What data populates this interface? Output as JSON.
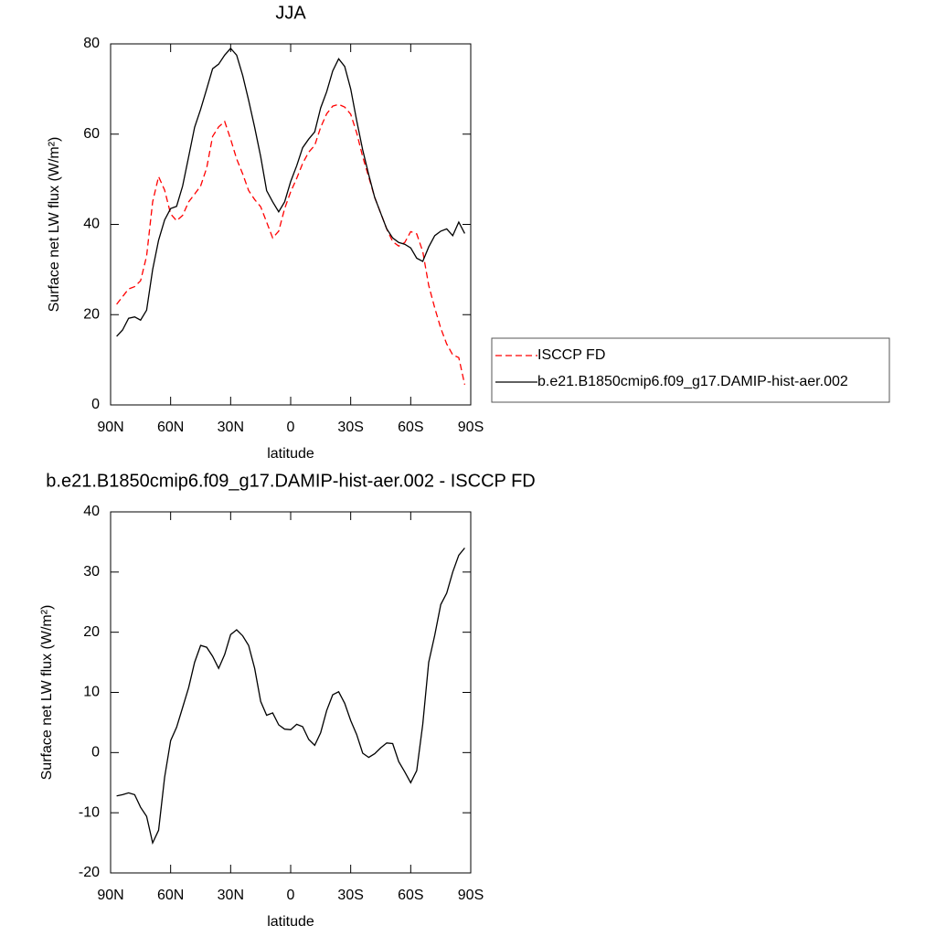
{
  "chart_data": [
    {
      "type": "line",
      "title": "JJA",
      "xlabel": "latitude",
      "ylabel": "Surface net LW flux (W/m²)",
      "legend": "right",
      "x": [
        87,
        84,
        81,
        78,
        75,
        72,
        69,
        66,
        63,
        60,
        57,
        54,
        51,
        48,
        45,
        42,
        39,
        36,
        33,
        30,
        27,
        24,
        21,
        18,
        15,
        12,
        9,
        6,
        3,
        0,
        -3,
        -6,
        -9,
        -12,
        -15,
        -18,
        -21,
        -24,
        -27,
        -30,
        -33,
        -36,
        -39,
        -42,
        -45,
        -48,
        -51,
        -54,
        -57,
        -60,
        -63,
        -66,
        -69,
        -72,
        -75,
        -78,
        -81,
        -84,
        -87
      ],
      "xlim": [
        90,
        -90
      ],
      "xticks": [
        {
          "value": 90,
          "label": "90N"
        },
        {
          "value": 60,
          "label": "60N"
        },
        {
          "value": 30,
          "label": "30N"
        },
        0,
        {
          "value": -30,
          "label": "30S"
        },
        {
          "value": -60,
          "label": "60S"
        },
        {
          "value": -90,
          "label": "90S"
        }
      ],
      "ylim": [
        0,
        80
      ],
      "yticks": [
        0,
        20,
        40,
        60,
        80
      ],
      "series": [
        {
          "name": "ISCCP FD",
          "color": "#ff0000",
          "dashed": true,
          "values": [
            22.3,
            24,
            25.7,
            26.2,
            27.5,
            33,
            45,
            50.6,
            47.6,
            42.3,
            40.8,
            42,
            45,
            46.7,
            48.5,
            52.5,
            59.5,
            61.6,
            62.8,
            58.9,
            54.5,
            51.2,
            47.5,
            45.5,
            43.9,
            40.5,
            37,
            38.5,
            43.5,
            47.2,
            50.2,
            53.5,
            56,
            57.5,
            61.5,
            64.5,
            66.2,
            66.6,
            66,
            64.4,
            60.3,
            55,
            50.5,
            46,
            42.5,
            39,
            36.2,
            35.2,
            36,
            38.4,
            37.9,
            34,
            26.5,
            21.5,
            17,
            13.5,
            11.1,
            10.5,
            4.5
          ]
        },
        {
          "name": "b.e21.B1850cmip6.f09_g17.DAMIP-hist-aer.002",
          "color": "#000000",
          "dashed": false,
          "values": [
            15.2,
            16.6,
            19.2,
            19.5,
            18.8,
            21,
            30,
            36.5,
            41,
            43.5,
            44,
            48.5,
            55,
            61.5,
            65.5,
            70,
            74.5,
            75.5,
            77.5,
            79,
            77.5,
            73,
            67.5,
            61.5,
            55,
            47.5,
            45,
            42.8,
            45,
            49.5,
            53,
            57,
            58.9,
            60.5,
            65.8,
            69.4,
            74,
            76.7,
            75,
            70,
            63,
            56.5,
            51,
            46,
            42.5,
            39,
            37,
            36,
            35.6,
            34.8,
            32.5,
            31.8,
            35,
            37.5,
            38.5,
            39,
            37.5,
            40.5,
            38
          ]
        }
      ]
    },
    {
      "type": "line",
      "title": "b.e21.B1850cmip6.f09_g17.DAMIP-hist-aer.002 - ISCCP FD",
      "xlabel": "latitude",
      "ylabel": "Surface net LW flux (W/m²)",
      "x": [
        87,
        84,
        81,
        78,
        75,
        72,
        69,
        66,
        63,
        60,
        57,
        54,
        51,
        48,
        45,
        42,
        39,
        36,
        33,
        30,
        27,
        24,
        21,
        18,
        15,
        12,
        9,
        6,
        3,
        0,
        -3,
        -6,
        -9,
        -12,
        -15,
        -18,
        -21,
        -24,
        -27,
        -30,
        -33,
        -36,
        -39,
        -42,
        -45,
        -48,
        -51,
        -54,
        -57,
        -60,
        -63,
        -66,
        -69,
        -72,
        -75,
        -78,
        -81,
        -84,
        -87
      ],
      "xlim": [
        90,
        -90
      ],
      "xticks": [
        {
          "value": 90,
          "label": "90N"
        },
        {
          "value": 60,
          "label": "60N"
        },
        {
          "value": 30,
          "label": "30N"
        },
        0,
        {
          "value": -30,
          "label": "30S"
        },
        {
          "value": -60,
          "label": "60S"
        },
        {
          "value": -90,
          "label": "90S"
        }
      ],
      "ylim": [
        -20,
        40
      ],
      "yticks": [
        -20,
        -10,
        0,
        10,
        20,
        30,
        40
      ],
      "series": [
        {
          "color": "#000000",
          "dashed": false,
          "values": [
            -7.2,
            -7,
            -6.7,
            -7,
            -9.1,
            -10.6,
            -15,
            -12.9,
            -4.1,
            2,
            4.2,
            7.5,
            10.8,
            15,
            17.8,
            17.5,
            16,
            14,
            16.3,
            19.6,
            20.4,
            19.4,
            17.8,
            14,
            8.5,
            6.2,
            6.6,
            4.6,
            3.9,
            3.8,
            4.7,
            4.3,
            2.2,
            1.2,
            3.3,
            7,
            9.6,
            10.1,
            8.2,
            5.3,
            3,
            -0.1,
            -0.8,
            -0.2,
            0.8,
            1.6,
            1.5,
            -1.5,
            -3.2,
            -5,
            -3,
            4.7,
            15,
            19.5,
            24.6,
            26.5,
            30,
            32.8,
            34
          ]
        }
      ]
    }
  ]
}
